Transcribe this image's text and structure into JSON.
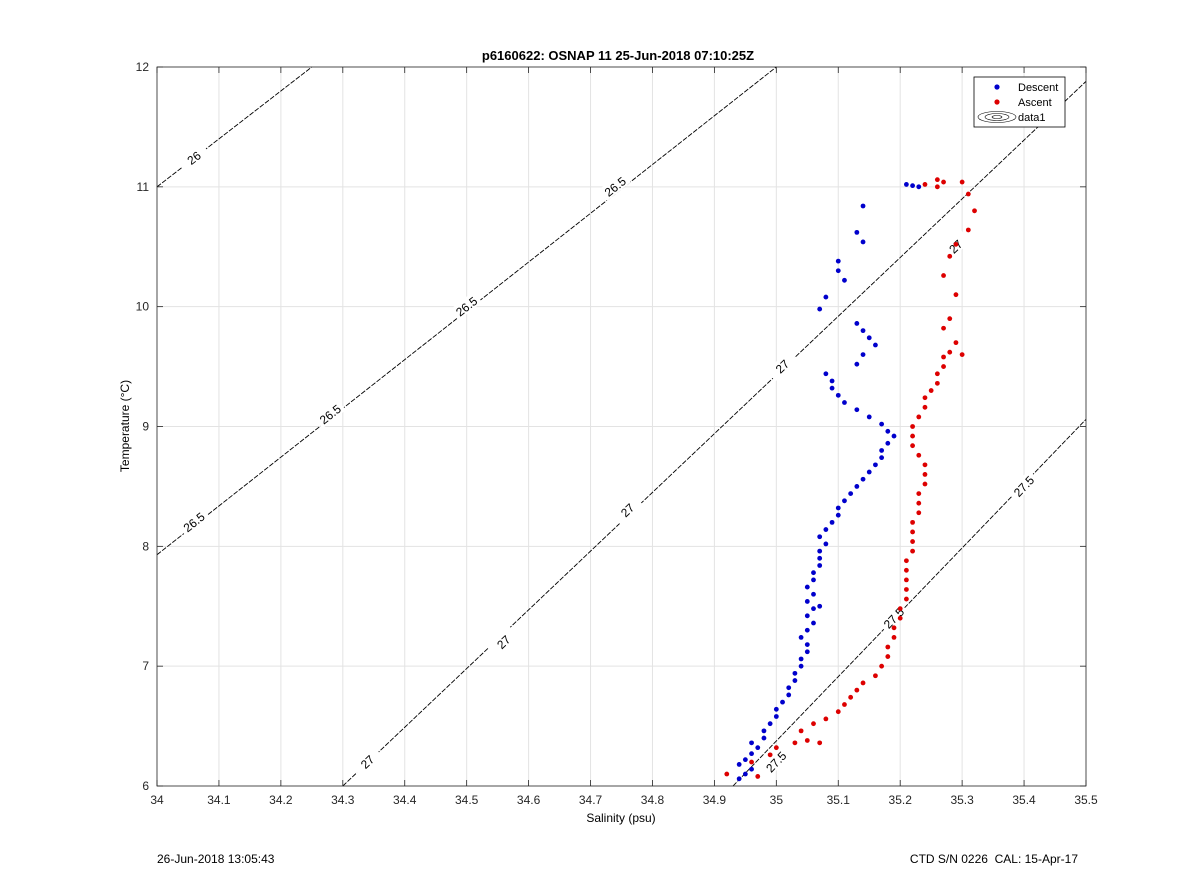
{
  "chart_data": {
    "type": "scatter",
    "title": "p6160622: OSNAP 11 25-Jun-2018 07:10:25Z",
    "xlabel": "Salinity (psu)",
    "ylabel": "Temperature (°C)",
    "xlim": [
      34,
      35.5
    ],
    "ylim": [
      6,
      12
    ],
    "xticks": [
      "34",
      "34.1",
      "34.2",
      "34.3",
      "34.4",
      "34.5",
      "34.6",
      "34.7",
      "34.8",
      "34.9",
      "35",
      "35.1",
      "35.2",
      "35.3",
      "35.4",
      "35.5"
    ],
    "yticks": [
      "6",
      "7",
      "8",
      "9",
      "10",
      "11",
      "12"
    ],
    "grid": true,
    "legend_position": "top-right",
    "legend": [
      "Descent",
      "Ascent",
      "data1"
    ],
    "series": [
      {
        "name": "Descent",
        "color": "#0000cc",
        "points": [
          [
            34.94,
            6.06
          ],
          [
            34.95,
            6.1
          ],
          [
            34.96,
            6.14
          ],
          [
            34.94,
            6.18
          ],
          [
            34.95,
            6.22
          ],
          [
            34.96,
            6.27
          ],
          [
            34.97,
            6.32
          ],
          [
            34.96,
            6.36
          ],
          [
            34.98,
            6.4
          ],
          [
            34.98,
            6.46
          ],
          [
            34.99,
            6.52
          ],
          [
            35.0,
            6.58
          ],
          [
            35.0,
            6.64
          ],
          [
            35.01,
            6.7
          ],
          [
            35.02,
            6.76
          ],
          [
            35.02,
            6.82
          ],
          [
            35.03,
            6.88
          ],
          [
            35.03,
            6.94
          ],
          [
            35.04,
            7.0
          ],
          [
            35.04,
            7.06
          ],
          [
            35.05,
            7.12
          ],
          [
            35.05,
            7.18
          ],
          [
            35.04,
            7.24
          ],
          [
            35.05,
            7.3
          ],
          [
            35.06,
            7.36
          ],
          [
            35.05,
            7.42
          ],
          [
            35.06,
            7.48
          ],
          [
            35.07,
            7.5
          ],
          [
            35.05,
            7.54
          ],
          [
            35.06,
            7.6
          ],
          [
            35.05,
            7.66
          ],
          [
            35.06,
            7.72
          ],
          [
            35.06,
            7.78
          ],
          [
            35.07,
            7.84
          ],
          [
            35.07,
            7.9
          ],
          [
            35.07,
            7.96
          ],
          [
            35.08,
            8.02
          ],
          [
            35.07,
            8.08
          ],
          [
            35.08,
            8.14
          ],
          [
            35.09,
            8.2
          ],
          [
            35.1,
            8.26
          ],
          [
            35.1,
            8.32
          ],
          [
            35.11,
            8.38
          ],
          [
            35.12,
            8.44
          ],
          [
            35.13,
            8.5
          ],
          [
            35.14,
            8.56
          ],
          [
            35.15,
            8.62
          ],
          [
            35.16,
            8.68
          ],
          [
            35.17,
            8.74
          ],
          [
            35.17,
            8.8
          ],
          [
            35.18,
            8.86
          ],
          [
            35.19,
            8.92
          ],
          [
            35.18,
            8.96
          ],
          [
            35.17,
            9.02
          ],
          [
            35.15,
            9.08
          ],
          [
            35.13,
            9.14
          ],
          [
            35.11,
            9.2
          ],
          [
            35.1,
            9.26
          ],
          [
            35.09,
            9.32
          ],
          [
            35.09,
            9.38
          ],
          [
            35.08,
            9.44
          ],
          [
            35.13,
            9.52
          ],
          [
            35.14,
            9.6
          ],
          [
            35.16,
            9.68
          ],
          [
            35.15,
            9.74
          ],
          [
            35.14,
            9.8
          ],
          [
            35.13,
            9.86
          ],
          [
            35.07,
            9.98
          ],
          [
            35.08,
            10.08
          ],
          [
            35.11,
            10.22
          ],
          [
            35.1,
            10.3
          ],
          [
            35.1,
            10.38
          ],
          [
            35.14,
            10.54
          ],
          [
            35.13,
            10.62
          ],
          [
            35.14,
            10.84
          ],
          [
            35.21,
            11.02
          ],
          [
            35.22,
            11.01
          ],
          [
            35.23,
            11.0
          ]
        ]
      },
      {
        "name": "Ascent",
        "color": "#dd0000",
        "points": [
          [
            34.92,
            6.1
          ],
          [
            34.97,
            6.08
          ],
          [
            34.96,
            6.2
          ],
          [
            34.99,
            6.26
          ],
          [
            35.0,
            6.32
          ],
          [
            35.03,
            6.36
          ],
          [
            35.05,
            6.38
          ],
          [
            35.07,
            6.36
          ],
          [
            35.04,
            6.46
          ],
          [
            35.06,
            6.52
          ],
          [
            35.08,
            6.56
          ],
          [
            35.1,
            6.62
          ],
          [
            35.11,
            6.68
          ],
          [
            35.12,
            6.74
          ],
          [
            35.13,
            6.8
          ],
          [
            35.14,
            6.86
          ],
          [
            35.16,
            6.92
          ],
          [
            35.17,
            7.0
          ],
          [
            35.18,
            7.08
          ],
          [
            35.18,
            7.16
          ],
          [
            35.19,
            7.24
          ],
          [
            35.19,
            7.32
          ],
          [
            35.2,
            7.4
          ],
          [
            35.2,
            7.48
          ],
          [
            35.21,
            7.56
          ],
          [
            35.21,
            7.64
          ],
          [
            35.21,
            7.72
          ],
          [
            35.21,
            7.8
          ],
          [
            35.21,
            7.88
          ],
          [
            35.22,
            7.96
          ],
          [
            35.22,
            8.04
          ],
          [
            35.22,
            8.12
          ],
          [
            35.22,
            8.2
          ],
          [
            35.23,
            8.28
          ],
          [
            35.23,
            8.36
          ],
          [
            35.23,
            8.44
          ],
          [
            35.24,
            8.52
          ],
          [
            35.24,
            8.6
          ],
          [
            35.24,
            8.68
          ],
          [
            35.23,
            8.76
          ],
          [
            35.22,
            8.84
          ],
          [
            35.22,
            8.92
          ],
          [
            35.22,
            9.0
          ],
          [
            35.23,
            9.08
          ],
          [
            35.24,
            9.16
          ],
          [
            35.24,
            9.24
          ],
          [
            35.25,
            9.3
          ],
          [
            35.26,
            9.36
          ],
          [
            35.26,
            9.44
          ],
          [
            35.27,
            9.5
          ],
          [
            35.27,
            9.58
          ],
          [
            35.28,
            9.62
          ],
          [
            35.3,
            9.6
          ],
          [
            35.29,
            9.7
          ],
          [
            35.27,
            9.82
          ],
          [
            35.28,
            9.9
          ],
          [
            35.29,
            10.1
          ],
          [
            35.27,
            10.26
          ],
          [
            35.28,
            10.42
          ],
          [
            35.29,
            10.52
          ],
          [
            35.31,
            10.64
          ],
          [
            35.32,
            10.8
          ],
          [
            35.31,
            10.94
          ],
          [
            35.3,
            11.04
          ],
          [
            35.26,
            11.06
          ],
          [
            35.27,
            11.04
          ],
          [
            35.24,
            11.02
          ],
          [
            35.26,
            11.0
          ]
        ]
      }
    ],
    "contours": [
      {
        "label": "26",
        "x0": 34.0,
        "y0": 11.0,
        "x1": 34.25,
        "y1": 12.0,
        "labels": [
          [
            34.06,
            11.24
          ]
        ]
      },
      {
        "label": "26.5",
        "x0": 34.0,
        "y0": 7.93,
        "x1": 35.0,
        "y1": 12.0,
        "labels": [
          [
            34.06,
            8.2
          ],
          [
            34.28,
            9.1
          ],
          [
            34.5,
            10.0
          ],
          [
            34.74,
            11.0
          ]
        ]
      },
      {
        "label": "27",
        "x0": 34.3,
        "y0": 6.0,
        "x1": 35.5,
        "y1": 11.88,
        "labels": [
          [
            34.34,
            6.2
          ],
          [
            34.56,
            7.2
          ],
          [
            34.76,
            8.3
          ],
          [
            35.01,
            9.5
          ],
          [
            35.29,
            10.5
          ],
          [
            35.52,
            11.5
          ]
        ]
      },
      {
        "label": "27.5",
        "x0": 34.93,
        "y0": 6.0,
        "x1": 35.5,
        "y1": 9.06,
        "labels": [
          [
            35.0,
            6.2
          ],
          [
            35.19,
            7.4
          ],
          [
            35.4,
            8.5
          ]
        ]
      }
    ],
    "footer_left": "26-Jun-2018 13:05:43",
    "footer_right": "CTD S/N 0226  CAL: 15-Apr-17"
  }
}
